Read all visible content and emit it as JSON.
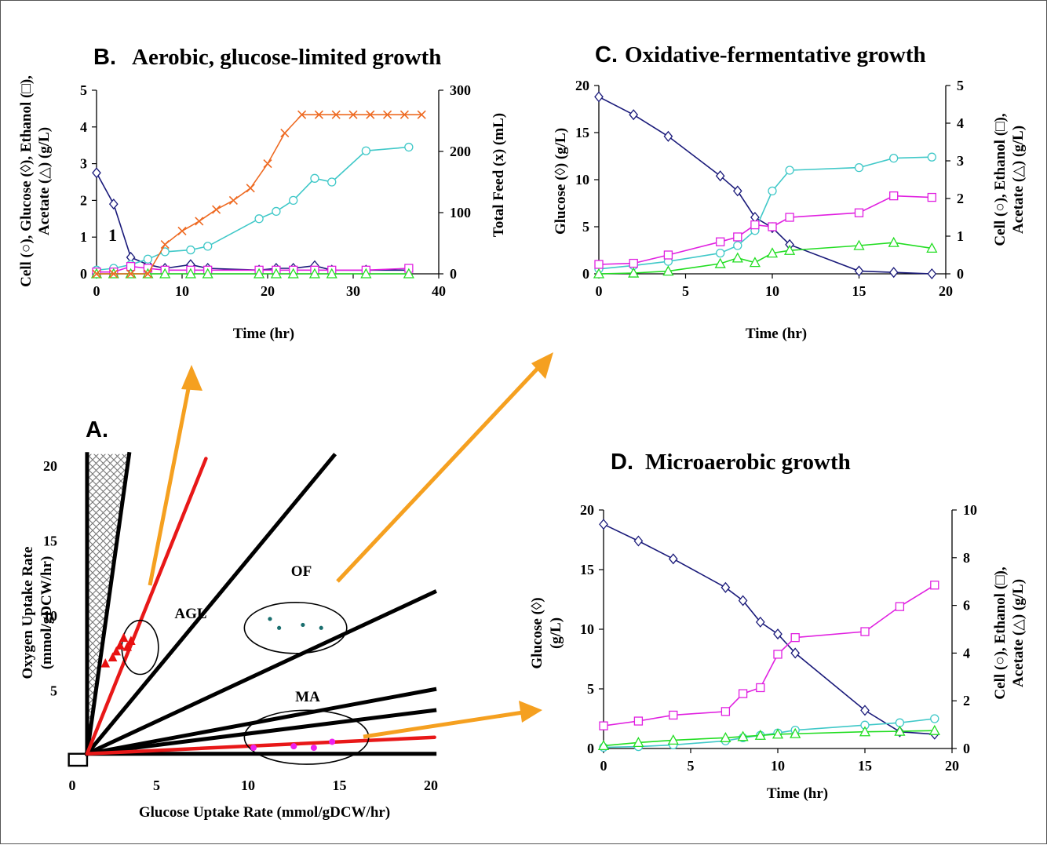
{
  "colors": {
    "cell": "#3fc8c8",
    "glucose": "#1a1a7a",
    "ethanol": "#e020e0",
    "acetate": "#22dd22",
    "feed": "#ee6a22",
    "arrow": "#f5a020",
    "ag_marker": "#e81010",
    "of_marker": "#1a6e6e",
    "ma_marker": "#ee22ee",
    "red_line": "#e81818",
    "black_line": "#000000",
    "hatch": "#777777"
  },
  "panels": {
    "A": {
      "letter": "A.",
      "xlabel": "Glucose Uptake Rate (mmol/gDCW/hr)",
      "ylabel_line1": "Oxygen Uptake Rate",
      "ylabel_line2": "(mmol/gDCW/hr)",
      "regions": {
        "agl": "AGL",
        "of": "OF",
        "ma": "MA"
      }
    },
    "B": {
      "letter": "B.",
      "title": "Aerobic, glucose-limited growth",
      "xlabel": "Time (hr)",
      "ylabel_left_1": "Cell (○), Glucose (◊), Ethanol (□),",
      "ylabel_left_2": "Acetate (△) (g/L)",
      "ylabel_right": "Total Feed (x) (mL)",
      "annotation": "1"
    },
    "C": {
      "letter": "C.",
      "title": "Oxidative-fermentative growth",
      "xlabel": "Time (hr)",
      "ylabel_left": "Glucose (◊) (g/L)",
      "ylabel_right_1": "Cell (○), Ethanol (□),",
      "ylabel_right_2": "Acetate (△) (g/L)"
    },
    "D": {
      "letter": "D.",
      "title": "Microaerobic growth",
      "xlabel": "Time (hr)",
      "ylabel_left_1": "Glucose (◊)",
      "ylabel_left_2": "(g/L)",
      "ylabel_right_1": "Cell (○), Ethanol (□),",
      "ylabel_right_2": "Acetate (△) (g/L)"
    }
  },
  "chart_data": [
    {
      "id": "A",
      "type": "scatter",
      "xlim": [
        0,
        20
      ],
      "ylim": [
        0,
        20
      ],
      "xticks": [
        0,
        5,
        10,
        15,
        20
      ],
      "yticks": [
        5,
        10,
        15,
        20
      ],
      "black_lines": [
        {
          "from": [
            1.2,
            0.8
          ],
          "to": [
            3.5,
            20.8
          ]
        },
        {
          "from": [
            1.2,
            0.8
          ],
          "to": [
            14.7,
            20.7
          ]
        },
        {
          "from": [
            1.2,
            0.8
          ],
          "to": [
            20.2,
            11.6
          ]
        },
        {
          "from": [
            1.2,
            0.8
          ],
          "to": [
            20.2,
            5.1
          ]
        },
        {
          "from": [
            1.2,
            0.8
          ],
          "to": [
            20.2,
            3.7
          ]
        },
        {
          "from": [
            1.2,
            0.8
          ],
          "to": [
            20.2,
            0.8
          ]
        },
        {
          "from": [
            1.2,
            0.8
          ],
          "to": [
            1.2,
            20.8
          ]
        }
      ],
      "red_lines": [
        {
          "from": [
            1.2,
            0.8
          ],
          "to": [
            7.7,
            20.5
          ]
        },
        {
          "from": [
            1.2,
            0.8
          ],
          "to": [
            20.2,
            1.9
          ]
        }
      ],
      "hatched_region": [
        [
          1.2,
          20.8
        ],
        [
          3.5,
          20.8
        ],
        [
          1.2,
          0.8
        ]
      ],
      "ellipses": [
        {
          "label": "AGL",
          "center": [
            4.1,
            7.9
          ],
          "rx": 1.0,
          "ry": 1.8
        },
        {
          "label": "OF",
          "center": [
            12.6,
            9.2
          ],
          "rx": 2.8,
          "ry": 1.7
        },
        {
          "label": "MA",
          "center": [
            13.2,
            1.9
          ],
          "rx": 3.4,
          "ry": 1.8
        }
      ],
      "series": [
        {
          "name": "AGL",
          "marker": "triangle",
          "x": [
            2.2,
            2.6,
            2.8,
            3.0,
            3.2,
            3.4,
            3.6
          ],
          "y": [
            6.8,
            7.2,
            7.6,
            8.0,
            8.5,
            7.9,
            8.3
          ]
        },
        {
          "name": "OF",
          "marker": "dot",
          "x": [
            11.2,
            11.7,
            13.0,
            14.0
          ],
          "y": [
            9.8,
            9.2,
            9.4,
            9.2
          ]
        },
        {
          "name": "MA",
          "marker": "dot",
          "x": [
            10.3,
            12.5,
            13.6,
            14.6
          ],
          "y": [
            1.2,
            1.3,
            1.2,
            1.6
          ]
        }
      ]
    },
    {
      "id": "B",
      "type": "line",
      "xlim": [
        0,
        40
      ],
      "ylim_left": [
        0,
        5
      ],
      "ylim_right": [
        0,
        300
      ],
      "xticks": [
        0,
        10,
        20,
        30,
        40
      ],
      "yticks_left": [
        0,
        1,
        2,
        3,
        4,
        5
      ],
      "yticks_right": [
        0,
        100,
        200,
        300
      ],
      "series": [
        {
          "name": "Glucose",
          "axis": "left",
          "marker": "diamond",
          "x": [
            0,
            2,
            4,
            6,
            8,
            11,
            13,
            19,
            21,
            23,
            25.5,
            27.5,
            31.5,
            36.5
          ],
          "y": [
            2.75,
            1.9,
            0.45,
            0.25,
            0.15,
            0.25,
            0.15,
            0.1,
            0.15,
            0.15,
            0.22,
            0.1,
            0.1,
            0.1
          ]
        },
        {
          "name": "Cell",
          "axis": "left",
          "marker": "circle",
          "x": [
            0,
            2,
            4,
            6,
            8,
            11,
            13,
            19,
            21,
            23,
            25.5,
            27.5,
            31.5,
            36.5
          ],
          "y": [
            0.1,
            0.15,
            0.25,
            0.4,
            0.6,
            0.65,
            0.75,
            1.5,
            1.7,
            2.0,
            2.6,
            2.5,
            3.35,
            3.45
          ]
        },
        {
          "name": "Ethanol",
          "axis": "left",
          "marker": "square",
          "x": [
            0,
            2,
            4,
            6,
            8,
            11,
            13,
            19,
            21,
            23,
            25.5,
            27.5,
            31.5,
            36.5
          ],
          "y": [
            0.05,
            0.05,
            0.2,
            0.15,
            0.1,
            0.1,
            0.1,
            0.1,
            0.1,
            0.1,
            0.1,
            0.1,
            0.1,
            0.15
          ]
        },
        {
          "name": "Acetate",
          "axis": "left",
          "marker": "triangle",
          "x": [
            0,
            2,
            4,
            6,
            8,
            11,
            13,
            19,
            21,
            23,
            25.5,
            27.5,
            31.5,
            36.5
          ],
          "y": [
            0,
            0,
            0,
            0,
            0,
            0,
            0,
            0,
            0,
            0,
            0,
            0,
            0,
            0
          ]
        },
        {
          "name": "Total Feed",
          "axis": "right",
          "marker": "x",
          "x": [
            0,
            2,
            4,
            6,
            8,
            10,
            12,
            14,
            16,
            18,
            20,
            22,
            24,
            26,
            28,
            30,
            32,
            34,
            36,
            38
          ],
          "y": [
            0,
            0,
            0,
            0,
            48,
            70,
            86,
            105,
            120,
            140,
            180,
            230,
            260,
            260,
            260,
            260,
            260,
            260,
            260,
            260
          ]
        }
      ]
    },
    {
      "id": "C",
      "type": "line",
      "xlim": [
        0,
        20
      ],
      "ylim_left": [
        0,
        20
      ],
      "ylim_right": [
        0,
        5
      ],
      "xticks": [
        0,
        5,
        10,
        15,
        20
      ],
      "yticks_left": [
        0,
        5,
        10,
        15,
        20
      ],
      "yticks_right": [
        0,
        1,
        2,
        3,
        4,
        5
      ],
      "series": [
        {
          "name": "Glucose",
          "axis": "left",
          "marker": "diamond",
          "x": [
            0,
            2,
            4,
            7,
            8,
            9,
            10,
            11,
            15,
            17,
            19.2
          ],
          "y": [
            18.8,
            16.9,
            14.6,
            10.4,
            8.8,
            6.0,
            4.9,
            3.1,
            0.3,
            0.15,
            0.0
          ]
        },
        {
          "name": "Cell",
          "axis": "right",
          "marker": "circle",
          "x": [
            0,
            2,
            4,
            7,
            8,
            9,
            10,
            11,
            15,
            17,
            19.2
          ],
          "y": [
            0.13,
            0.22,
            0.33,
            0.55,
            0.75,
            1.15,
            2.2,
            2.75,
            2.82,
            3.07,
            3.1
          ]
        },
        {
          "name": "Ethanol",
          "axis": "right",
          "marker": "square",
          "x": [
            0,
            2,
            4,
            7,
            8,
            9,
            10,
            11,
            15,
            17,
            19.2
          ],
          "y": [
            0.25,
            0.28,
            0.5,
            0.85,
            0.98,
            1.3,
            1.25,
            1.5,
            1.62,
            2.07,
            2.03
          ]
        },
        {
          "name": "Acetate",
          "axis": "right",
          "marker": "triangle",
          "x": [
            0,
            2,
            4,
            7,
            8,
            9,
            10,
            11,
            15,
            17,
            19.2
          ],
          "y": [
            0,
            0.02,
            0.07,
            0.27,
            0.42,
            0.3,
            0.55,
            0.62,
            0.75,
            0.83,
            0.68
          ]
        }
      ]
    },
    {
      "id": "D",
      "type": "line",
      "xlim": [
        0,
        20
      ],
      "ylim_left": [
        0,
        20
      ],
      "ylim_right": [
        0,
        10
      ],
      "xticks": [
        0,
        5,
        10,
        15,
        20
      ],
      "yticks_left": [
        0,
        5,
        10,
        15,
        20
      ],
      "yticks_right": [
        0,
        2,
        4,
        6,
        8,
        10
      ],
      "series": [
        {
          "name": "Glucose",
          "axis": "left",
          "marker": "diamond",
          "x": [
            0,
            2,
            4,
            7,
            8,
            9,
            10,
            11,
            15,
            17,
            19
          ],
          "y": [
            18.8,
            17.4,
            15.9,
            13.5,
            12.4,
            10.6,
            9.6,
            8.0,
            3.2,
            1.4,
            1.2
          ]
        },
        {
          "name": "Cell",
          "axis": "right",
          "marker": "circle",
          "x": [
            0,
            2,
            4,
            7,
            8,
            9,
            10,
            11,
            15,
            17,
            19
          ],
          "y": [
            0.05,
            0.08,
            0.15,
            0.32,
            0.45,
            0.55,
            0.65,
            0.77,
            0.98,
            1.08,
            1.25
          ]
        },
        {
          "name": "Ethanol",
          "axis": "right",
          "marker": "square",
          "x": [
            0,
            2,
            4,
            7,
            8,
            9,
            10,
            11,
            15,
            17,
            19
          ],
          "y": [
            0.95,
            1.15,
            1.4,
            1.55,
            2.3,
            2.55,
            3.95,
            4.65,
            4.9,
            5.95,
            6.85
          ]
        },
        {
          "name": "Acetate",
          "axis": "right",
          "marker": "triangle",
          "x": [
            0,
            2,
            4,
            7,
            8,
            9,
            10,
            11,
            15,
            17,
            19
          ],
          "y": [
            0.12,
            0.25,
            0.35,
            0.45,
            0.5,
            0.55,
            0.6,
            0.62,
            0.7,
            0.72,
            0.75
          ]
        }
      ]
    }
  ]
}
